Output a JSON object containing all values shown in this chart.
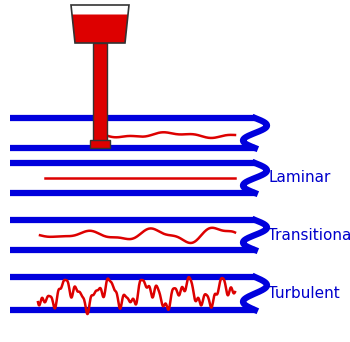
{
  "background_color": "#ffffff",
  "blue_color": "#0000dd",
  "red_color": "#dd0000",
  "label_color": "#0000cc",
  "label_fontsize": 11,
  "labels": [
    "Laminar",
    "Transitional",
    "Turbulent"
  ],
  "fig_width": 3.5,
  "fig_height": 3.42,
  "dpi": 100
}
